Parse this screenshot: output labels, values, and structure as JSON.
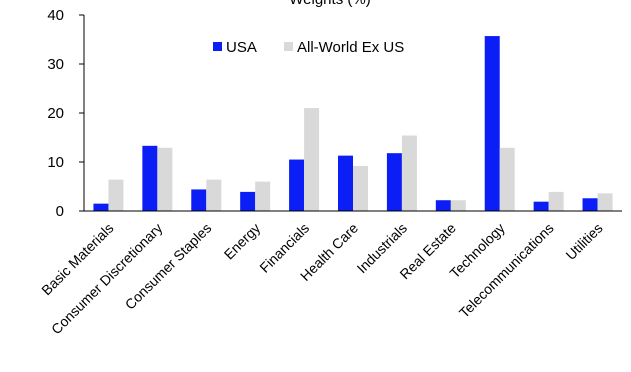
{
  "chart_data": {
    "type": "bar",
    "title": "Weights (%)",
    "categories": [
      "Basic Materials",
      "Consumer Discretionary",
      "Consumer Staples",
      "Energy",
      "Financials",
      "Health Care",
      "Industrials",
      "Real Estate",
      "Technology",
      "Telecommunications",
      "Utilities"
    ],
    "series": [
      {
        "name": "USA",
        "color": "#0a1ef5",
        "values": [
          1.5,
          13.3,
          4.4,
          3.9,
          10.5,
          11.3,
          11.8,
          2.2,
          35.7,
          1.9,
          2.6
        ]
      },
      {
        "name": "All-World Ex US",
        "color": "#d9d9d9",
        "values": [
          6.4,
          12.9,
          6.4,
          6.0,
          21.0,
          9.2,
          15.4,
          2.2,
          12.9,
          3.9,
          3.6
        ]
      }
    ],
    "ylim": [
      0,
      40
    ],
    "yticks": [
      0,
      10,
      20,
      30,
      40
    ],
    "xlabel": "",
    "ylabel": "",
    "grid": false,
    "legend_position": "top-center"
  }
}
